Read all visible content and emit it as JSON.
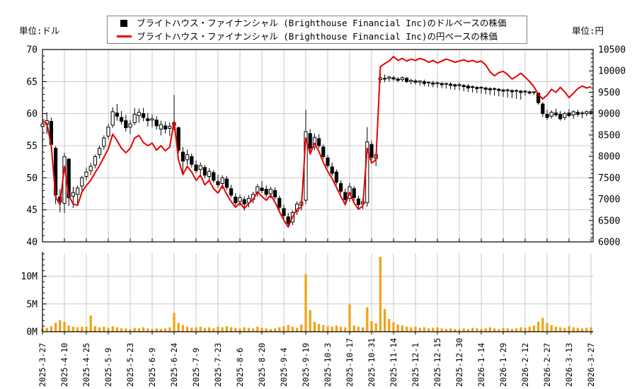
{
  "units": {
    "left": "単位:ドル",
    "right": "単位:円"
  },
  "legend": {
    "items": [
      {
        "marker": "black-square",
        "color": "#000000",
        "label": "ブライトハウス・ファイナンシャル (Brighthouse Financial Inc)のドルベースの株価"
      },
      {
        "marker": "red-line",
        "color": "#e60000",
        "label": "ブライトハウス・ファイナンシャル (Brighthouse Financial Inc)の円ベースの株価"
      }
    ]
  },
  "chart_data": {
    "type": "candlestick+line+volume-bar",
    "title": "",
    "layout": {
      "grid": true,
      "legend_position": "top-center",
      "x_labels_rotated": true,
      "panes": [
        "price",
        "volume"
      ]
    },
    "colors": {
      "grid": "#c8c8c8",
      "axis": "#000000",
      "candle_up_fill": "#ffffff",
      "candle_down_fill": "#000000",
      "candle_border": "#000000",
      "yen_line": "#e60000",
      "volume_bar": "#f3a112"
    },
    "x_tick_labels": [
      "2025-3-27",
      "2025-4-10",
      "2025-4-25",
      "2025-5-9",
      "2025-5-23",
      "2025-6-9",
      "2025-6-24",
      "2025-7-9",
      "2025-7-23",
      "2025-8-6",
      "2025-8-20",
      "2025-9-4",
      "2025-9-19",
      "2025-10-3",
      "2025-10-17",
      "2025-10-31",
      "2025-11-14",
      "2025-12-1",
      "2025-12-15",
      "2025-12-30",
      "2026-1-14",
      "2026-1-29",
      "2026-2-12",
      "2026-2-27",
      "2026-3-13",
      "2026-3-27"
    ],
    "price_axis_left": {
      "label": "単位:ドル",
      "min": 40,
      "max": 70,
      "ticks": [
        40,
        45,
        50,
        55,
        60,
        65,
        70
      ],
      "minor_step": 1
    },
    "price_axis_right": {
      "label": "単位:円",
      "min": 6000,
      "max": 10500,
      "ticks": [
        6000,
        6500,
        7000,
        7500,
        8000,
        8500,
        9000,
        9500,
        10000,
        10500
      ],
      "minor_step": 100
    },
    "volume_axis": {
      "min": 0,
      "max": 14,
      "ticks": [
        0,
        5,
        10
      ],
      "tick_labels": [
        "0M",
        "5M",
        "10M"
      ],
      "minor_step": 1
    },
    "series": [
      {
        "name": "usd-candles",
        "type": "candlestick",
        "axis": "left",
        "ohlc": [
          [
            58.0,
            59.6,
            57.2,
            58.4
          ],
          [
            58.3,
            60.2,
            56.8,
            58.9
          ],
          [
            58.8,
            59.4,
            54.8,
            55.2
          ],
          [
            54.6,
            54.9,
            45.9,
            47.3
          ],
          [
            47.0,
            48.2,
            44.6,
            46.2
          ],
          [
            46.0,
            53.9,
            44.5,
            53.3
          ],
          [
            52.9,
            53.1,
            45.6,
            46.9
          ],
          [
            47.1,
            48.6,
            45.3,
            47.7
          ],
          [
            47.4,
            48.8,
            45.9,
            48.4
          ],
          [
            48.7,
            50.3,
            48.0,
            50.0
          ],
          [
            50.2,
            51.6,
            49.6,
            50.9
          ],
          [
            51.1,
            52.3,
            50.4,
            51.8
          ],
          [
            52.0,
            53.6,
            51.5,
            53.3
          ],
          [
            53.6,
            55.0,
            53.0,
            54.6
          ],
          [
            54.9,
            56.6,
            54.4,
            56.2
          ],
          [
            56.5,
            58.4,
            56.0,
            57.9
          ],
          [
            58.2,
            61.0,
            57.8,
            60.3
          ],
          [
            60.1,
            61.5,
            58.9,
            59.6
          ],
          [
            59.4,
            60.4,
            58.3,
            58.8
          ],
          [
            58.9,
            59.8,
            57.2,
            57.8
          ],
          [
            57.9,
            59.0,
            56.8,
            58.4
          ],
          [
            58.6,
            60.9,
            58.2,
            59.9
          ],
          [
            59.7,
            60.8,
            58.6,
            60.2
          ],
          [
            60.0,
            60.9,
            58.8,
            59.4
          ],
          [
            59.2,
            60.1,
            58.0,
            58.9
          ],
          [
            59.0,
            59.9,
            57.9,
            59.2
          ],
          [
            59.0,
            59.6,
            57.5,
            58.1
          ],
          [
            57.6,
            58.9,
            56.6,
            58.3
          ],
          [
            58.1,
            58.8,
            56.9,
            57.6
          ],
          [
            57.7,
            58.6,
            56.5,
            58.0
          ],
          [
            58.2,
            62.9,
            57.4,
            58.6
          ],
          [
            57.8,
            58.0,
            53.9,
            54.3
          ],
          [
            54.0,
            54.8,
            50.8,
            52.6
          ],
          [
            52.8,
            54.4,
            52.0,
            53.6
          ],
          [
            53.3,
            53.8,
            51.6,
            52.1
          ],
          [
            52.0,
            52.7,
            50.7,
            51.1
          ],
          [
            51.3,
            52.4,
            50.4,
            51.9
          ],
          [
            51.6,
            52.0,
            49.9,
            50.4
          ],
          [
            50.2,
            51.5,
            49.6,
            51.0
          ],
          [
            50.8,
            51.2,
            49.2,
            49.6
          ],
          [
            49.4,
            50.5,
            48.4,
            48.9
          ],
          [
            49.1,
            50.4,
            48.3,
            50.0
          ],
          [
            49.8,
            50.3,
            48.1,
            48.5
          ],
          [
            48.3,
            48.9,
            46.9,
            47.3
          ],
          [
            47.0,
            47.6,
            45.7,
            46.1
          ],
          [
            46.3,
            47.4,
            45.6,
            46.9
          ],
          [
            46.6,
            47.1,
            44.9,
            45.9
          ],
          [
            46.1,
            47.3,
            45.4,
            46.8
          ],
          [
            46.6,
            47.8,
            46.0,
            47.4
          ],
          [
            47.6,
            49.0,
            47.0,
            48.6
          ],
          [
            48.4,
            49.5,
            47.6,
            48.0
          ],
          [
            48.2,
            48.8,
            46.9,
            47.4
          ],
          [
            47.5,
            48.6,
            46.8,
            48.2
          ],
          [
            48.0,
            48.5,
            46.6,
            47.0
          ],
          [
            46.8,
            47.2,
            45.0,
            45.4
          ],
          [
            45.2,
            45.8,
            43.6,
            44.1
          ],
          [
            43.9,
            44.5,
            42.4,
            42.9
          ],
          [
            43.1,
            44.9,
            42.6,
            44.6
          ],
          [
            44.8,
            46.3,
            44.2,
            45.9
          ],
          [
            45.7,
            46.6,
            44.9,
            46.2
          ],
          [
            46.5,
            60.6,
            45.9,
            57.2
          ],
          [
            56.9,
            57.6,
            54.1,
            54.6
          ],
          [
            54.8,
            56.9,
            54.3,
            56.3
          ],
          [
            56.1,
            56.8,
            54.6,
            55.0
          ],
          [
            54.8,
            55.2,
            52.9,
            53.3
          ],
          [
            53.1,
            53.6,
            51.5,
            51.9
          ],
          [
            51.7,
            52.4,
            50.3,
            50.7
          ],
          [
            50.9,
            51.3,
            48.9,
            49.3
          ],
          [
            49.1,
            49.6,
            47.5,
            47.9
          ],
          [
            47.7,
            48.3,
            46.2,
            46.6
          ],
          [
            46.8,
            49.2,
            46.3,
            48.6
          ],
          [
            48.3,
            48.7,
            46.4,
            46.9
          ],
          [
            46.7,
            47.2,
            45.3,
            45.8
          ],
          [
            45.9,
            46.8,
            45.1,
            46.3
          ],
          [
            46.1,
            57.9,
            45.5,
            55.6
          ],
          [
            55.2,
            55.8,
            52.8,
            53.2
          ],
          [
            53.0,
            54.1,
            51.8,
            53.6
          ],
          [
            65.3,
            66.4,
            64.8,
            65.6
          ],
          [
            65.5,
            66.1,
            64.9,
            65.4
          ],
          [
            65.5,
            65.9,
            65.0,
            65.7
          ],
          [
            65.6,
            65.9,
            65.1,
            65.4
          ],
          [
            65.4,
            65.7,
            64.9,
            65.2
          ],
          [
            65.3,
            65.8,
            65.0,
            65.6
          ],
          [
            65.5,
            65.7,
            64.8,
            65.0
          ],
          [
            65.0,
            65.4,
            64.6,
            65.2
          ],
          [
            65.1,
            65.4,
            64.5,
            64.9
          ],
          [
            64.9,
            65.2,
            64.4,
            65.1
          ],
          [
            65.0,
            65.3,
            64.3,
            64.7
          ],
          [
            64.8,
            65.0,
            64.2,
            64.9
          ],
          [
            64.8,
            65.1,
            64.1,
            64.6
          ],
          [
            64.7,
            65.0,
            64.0,
            64.8
          ],
          [
            64.7,
            64.9,
            64.0,
            64.5
          ],
          [
            64.6,
            64.8,
            63.9,
            64.7
          ],
          [
            64.6,
            64.9,
            63.8,
            64.4
          ],
          [
            64.5,
            64.7,
            63.7,
            64.3
          ],
          [
            64.4,
            64.8,
            63.6,
            64.5
          ],
          [
            64.4,
            64.6,
            63.5,
            64.2
          ],
          [
            64.3,
            64.6,
            63.4,
            64.0
          ],
          [
            64.1,
            64.4,
            63.3,
            64.2
          ],
          [
            64.1,
            64.3,
            63.2,
            63.9
          ],
          [
            64.0,
            64.3,
            63.1,
            64.1
          ],
          [
            64.0,
            64.2,
            63.0,
            63.8
          ],
          [
            63.9,
            64.1,
            62.9,
            63.7
          ],
          [
            63.8,
            64.1,
            62.8,
            63.9
          ],
          [
            63.8,
            64.0,
            62.7,
            63.6
          ],
          [
            63.7,
            63.9,
            62.6,
            63.5
          ],
          [
            63.6,
            63.9,
            62.5,
            63.7
          ],
          [
            63.6,
            63.8,
            62.4,
            63.4
          ],
          [
            63.5,
            63.8,
            62.3,
            63.6
          ],
          [
            63.5,
            63.7,
            62.2,
            63.3
          ],
          [
            63.4,
            63.7,
            62.8,
            63.5
          ],
          [
            63.4,
            63.6,
            63.0,
            63.2
          ],
          [
            63.3,
            63.5,
            62.9,
            63.4
          ],
          [
            63.2,
            63.3,
            61.4,
            61.7
          ],
          [
            61.5,
            61.8,
            59.5,
            60.0
          ],
          [
            59.9,
            60.6,
            59.0,
            59.4
          ],
          [
            59.6,
            60.5,
            59.2,
            60.2
          ],
          [
            60.1,
            60.8,
            59.5,
            59.8
          ],
          [
            59.9,
            60.4,
            58.9,
            59.2
          ],
          [
            59.4,
            60.3,
            59.0,
            60.0
          ],
          [
            60.1,
            60.7,
            59.4,
            59.7
          ],
          [
            59.8,
            60.5,
            59.2,
            60.3
          ],
          [
            60.2,
            60.6,
            59.5,
            59.9
          ],
          [
            60.0,
            60.4,
            59.3,
            60.1
          ],
          [
            60.0,
            60.5,
            59.6,
            60.3
          ],
          [
            60.2,
            60.6,
            59.8,
            60.3
          ]
        ]
      },
      {
        "name": "jpy-line",
        "type": "line",
        "axis": "right",
        "values": [
          8820,
          8775,
          8250,
          7050,
          6870,
          7770,
          7080,
          6885,
          6855,
          7170,
          7320,
          7440,
          7620,
          7785,
          7980,
          8175,
          8520,
          8370,
          8190,
          8085,
          8190,
          8430,
          8490,
          8325,
          8250,
          8310,
          8145,
          8250,
          8130,
          8220,
          8820,
          7920,
          7575,
          7770,
          7635,
          7440,
          7560,
          7335,
          7440,
          7245,
          7140,
          7320,
          7110,
          6945,
          6810,
          6915,
          6780,
          6900,
          6990,
          7170,
          7065,
          6975,
          7095,
          6930,
          6705,
          6510,
          6345,
          6585,
          6765,
          6810,
          8430,
          8055,
          8310,
          8115,
          7860,
          7650,
          7485,
          7275,
          7065,
          6870,
          7155,
          6915,
          6765,
          6840,
          8190,
          7845,
          7920,
          10095,
          10170,
          10230,
          10335,
          10245,
          10290,
          10230,
          10275,
          10245,
          10290,
          10260,
          10200,
          10245,
          10185,
          10230,
          10275,
          10245,
          10200,
          10230,
          10260,
          10215,
          10245,
          10200,
          10230,
          10140,
          9975,
          9885,
          9960,
          9990,
          9915,
          9810,
          9870,
          9945,
          9855,
          9750,
          9630,
          9450,
          9345,
          9435,
          9570,
          9495,
          9615,
          9510,
          9375,
          9480,
          9585,
          9645,
          9600,
          9630
        ]
      },
      {
        "name": "volume",
        "type": "bar",
        "axis": "volume",
        "values_millions": [
          0.5,
          0.7,
          1.0,
          1.6,
          2.1,
          1.8,
          1.1,
          0.9,
          0.8,
          0.9,
          0.9,
          2.9,
          1.0,
          0.8,
          0.9,
          0.7,
          1.0,
          0.8,
          0.6,
          0.6,
          0.5,
          0.7,
          0.6,
          0.8,
          0.6,
          0.5,
          0.6,
          0.5,
          0.6,
          0.8,
          3.4,
          1.6,
          1.2,
          0.9,
          0.7,
          0.8,
          0.9,
          0.7,
          0.8,
          0.6,
          0.9,
          0.8,
          1.0,
          0.8,
          0.7,
          0.6,
          0.8,
          0.7,
          0.6,
          0.9,
          0.7,
          0.6,
          0.5,
          0.6,
          0.8,
          1.0,
          1.2,
          0.9,
          0.7,
          1.3,
          10.4,
          3.9,
          1.8,
          1.4,
          1.2,
          1.0,
          0.9,
          1.1,
          0.9,
          0.8,
          4.9,
          1.1,
          0.9,
          0.8,
          4.4,
          1.9,
          1.5,
          13.5,
          4.1,
          2.3,
          1.7,
          1.3,
          1.1,
          0.9,
          0.8,
          0.9,
          0.7,
          0.8,
          0.6,
          0.7,
          0.8,
          0.6,
          0.5,
          0.6,
          0.5,
          0.4,
          0.6,
          0.5,
          0.7,
          0.6,
          0.5,
          0.6,
          0.8,
          0.6,
          0.5,
          0.7,
          0.6,
          0.5,
          0.6,
          0.8,
          0.7,
          0.9,
          1.1,
          1.8,
          2.5,
          1.6,
          1.2,
          0.9,
          0.8,
          0.7,
          1.0,
          0.8,
          0.7,
          0.6,
          0.7,
          0.8
        ]
      }
    ]
  }
}
